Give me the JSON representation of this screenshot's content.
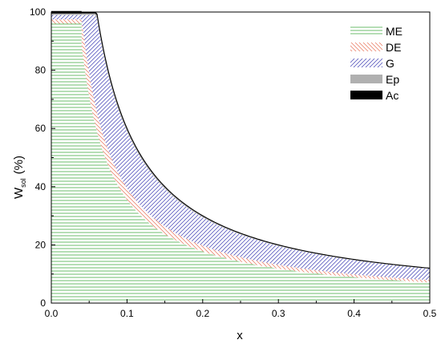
{
  "chart_data": {
    "type": "area",
    "xlabel": "x",
    "ylabel": "W",
    "ylabel_sub": "sol",
    "ylabel_unit": "(%)",
    "xlim": [
      0,
      0.5
    ],
    "ylim": [
      0,
      100
    ],
    "xticks": [
      "0.0",
      "0.1",
      "0.2",
      "0.3",
      "0.4",
      "0.5"
    ],
    "yticks": [
      "0",
      "20",
      "40",
      "60",
      "80",
      "100"
    ],
    "grid": false,
    "legend_position": "top-right",
    "x_start": 0.04,
    "x_end": 0.5,
    "series": [
      {
        "name": "ME",
        "color": "#2ca02c",
        "hatch": "horizontal",
        "boundary_coefficient": 3.55,
        "boundary_at_x_start": 96.0
      },
      {
        "name": "DE",
        "color": "#e8735a",
        "hatch": "diagonal-down",
        "boundary_coefficient": 3.95,
        "boundary_at_x_start": 97.5
      },
      {
        "name": "G",
        "color": "#3b3bb3",
        "hatch": "diagonal-up",
        "boundary_coefficient": 5.9,
        "boundary_at_x_start": 99.0
      },
      {
        "name": "Ep",
        "color": "#b0b0b0",
        "hatch": "solid",
        "boundary_coefficient": 5.98,
        "boundary_at_x_start": 99.5
      },
      {
        "name": "Ac",
        "color": "#000000",
        "hatch": "solid",
        "boundary_coefficient": 6.0,
        "boundary_at_x_start": 100.0
      }
    ]
  }
}
